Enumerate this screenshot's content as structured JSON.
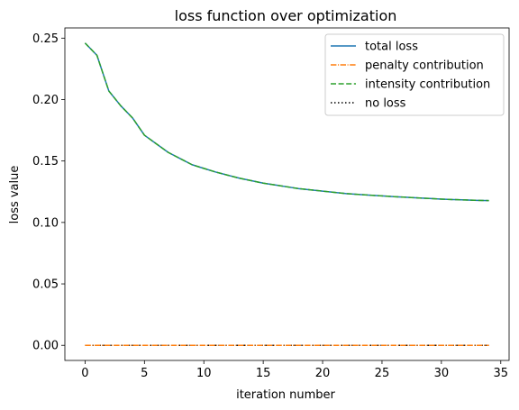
{
  "chart_data": {
    "type": "line",
    "title": "loss function over optimization",
    "xlabel": "iteration number",
    "ylabel": "loss value",
    "xlim": [
      -1.7,
      35.7
    ],
    "ylim": [
      -0.0123,
      0.2583
    ],
    "xticks": [
      0,
      5,
      10,
      15,
      20,
      25,
      30,
      35
    ],
    "xtick_labels": [
      "0",
      "5",
      "10",
      "15",
      "20",
      "25",
      "30",
      "35"
    ],
    "yticks": [
      0.0,
      0.05,
      0.1,
      0.15,
      0.2,
      0.25
    ],
    "ytick_labels": [
      "0.00",
      "0.05",
      "0.10",
      "0.15",
      "0.20",
      "0.25"
    ],
    "grid": false,
    "legend_position": "top-right",
    "x": [
      0,
      1,
      2,
      3,
      4,
      5,
      6,
      7,
      8,
      9,
      10,
      11,
      12,
      13,
      14,
      15,
      16,
      17,
      18,
      19,
      20,
      21,
      22,
      23,
      24,
      25,
      26,
      27,
      28,
      29,
      30,
      31,
      32,
      33,
      34
    ],
    "series": [
      {
        "name": "total loss",
        "color": "#1f77b4",
        "style": "solid",
        "values": [
          0.246,
          0.236,
          0.207,
          0.195,
          0.185,
          0.171,
          0.164,
          0.157,
          0.152,
          0.147,
          0.144,
          0.141,
          0.1385,
          0.136,
          0.134,
          0.132,
          0.1305,
          0.129,
          0.1275,
          0.1265,
          0.1255,
          0.1245,
          0.1235,
          0.1228,
          0.1222,
          0.1216,
          0.121,
          0.1205,
          0.12,
          0.1195,
          0.119,
          0.1186,
          0.1183,
          0.118,
          0.1178
        ]
      },
      {
        "name": "penalty contribution",
        "color": "#ff7f0e",
        "style": "dashdot",
        "values": [
          0,
          0,
          0,
          0,
          0,
          0,
          0,
          0,
          0,
          0,
          0,
          0,
          0,
          0,
          0,
          0,
          0,
          0,
          0,
          0,
          0,
          0,
          0,
          0,
          0,
          0,
          0,
          0,
          0,
          0,
          0,
          0,
          0,
          0,
          0
        ]
      },
      {
        "name": "intensity contribution",
        "color": "#2ca02c",
        "style": "dashed",
        "values": [
          0.246,
          0.236,
          0.207,
          0.195,
          0.185,
          0.171,
          0.164,
          0.157,
          0.152,
          0.147,
          0.144,
          0.141,
          0.1385,
          0.136,
          0.134,
          0.132,
          0.1305,
          0.129,
          0.1275,
          0.1265,
          0.1255,
          0.1245,
          0.1235,
          0.1228,
          0.1222,
          0.1216,
          0.121,
          0.1205,
          0.12,
          0.1195,
          0.119,
          0.1186,
          0.1183,
          0.118,
          0.1178
        ]
      },
      {
        "name": "no loss",
        "color": "#000000",
        "style": "dotted",
        "values": [
          0,
          0,
          0,
          0,
          0,
          0,
          0,
          0,
          0,
          0,
          0,
          0,
          0,
          0,
          0,
          0,
          0,
          0,
          0,
          0,
          0,
          0,
          0,
          0,
          0,
          0,
          0,
          0,
          0,
          0,
          0,
          0,
          0,
          0,
          0
        ]
      }
    ]
  }
}
